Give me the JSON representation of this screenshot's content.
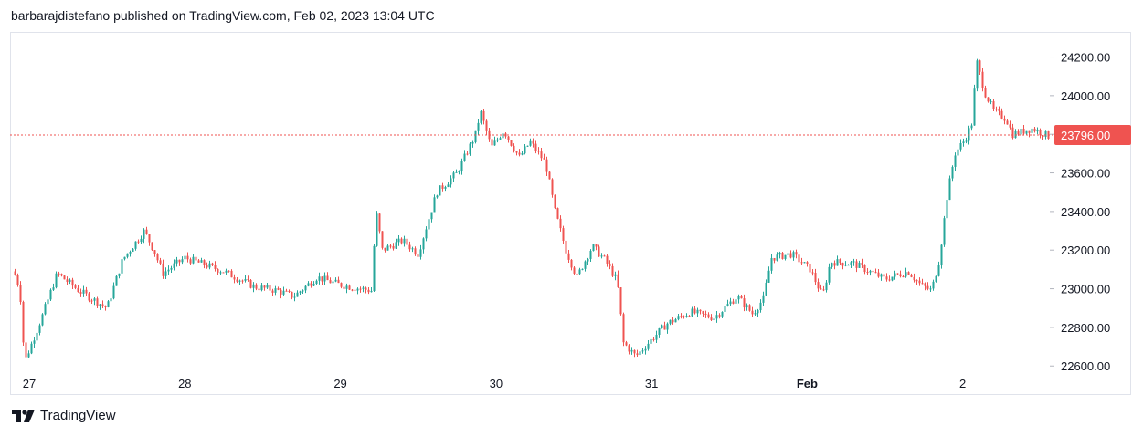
{
  "header": {
    "published_line": "barbarajdistefano published on TradingView.com, Feb 02, 2023 13:04 UTC"
  },
  "footer": {
    "brand": "TradingView"
  },
  "colors": {
    "up": "#26a69a",
    "down": "#ef5350",
    "last_price_line": "#ef5350",
    "last_price_badge": "#ef5350",
    "axis_text": "#131722",
    "border": "#e0e3eb"
  },
  "chart_data": {
    "type": "candlestick",
    "title": "",
    "xlabel": "",
    "ylabel": "",
    "ylim": [
      22450,
      24330
    ],
    "y_ticks": [
      22600,
      22800,
      23000,
      23200,
      23400,
      23600,
      23800,
      24000,
      24200
    ],
    "y_tick_labels": [
      "22600.00",
      "22800.00",
      "23000.00",
      "23200.00",
      "23400.00",
      "23600.00",
      "23800.00",
      "24000.00",
      "24200.00"
    ],
    "x_ticks": [
      {
        "label": "27",
        "t": 0.1
      },
      {
        "label": "28",
        "t": 1.1
      },
      {
        "label": "29",
        "t": 2.1
      },
      {
        "label": "30",
        "t": 3.1
      },
      {
        "label": "31",
        "t": 4.1
      },
      {
        "label": "Feb",
        "t": 5.1
      },
      {
        "label": "2",
        "t": 6.1
      }
    ],
    "last_price": 23796.0,
    "last_price_label": "23796.00",
    "grid": false,
    "legend": "none",
    "path_anchors": [
      {
        "t": 0.0,
        "p": 23090
      },
      {
        "t": 0.04,
        "p": 23000
      },
      {
        "t": 0.07,
        "p": 22620
      },
      {
        "t": 0.18,
        "p": 22850
      },
      {
        "t": 0.28,
        "p": 23080
      },
      {
        "t": 0.42,
        "p": 22990
      },
      {
        "t": 0.6,
        "p": 22900
      },
      {
        "t": 0.7,
        "p": 23150
      },
      {
        "t": 0.84,
        "p": 23300
      },
      {
        "t": 0.9,
        "p": 23200
      },
      {
        "t": 0.96,
        "p": 23080
      },
      {
        "t": 1.1,
        "p": 23160
      },
      {
        "t": 1.35,
        "p": 23090
      },
      {
        "t": 1.55,
        "p": 23010
      },
      {
        "t": 1.7,
        "p": 22990
      },
      {
        "t": 1.8,
        "p": 22960
      },
      {
        "t": 1.95,
        "p": 23060
      },
      {
        "t": 2.1,
        "p": 23020
      },
      {
        "t": 2.3,
        "p": 22990
      },
      {
        "t": 2.33,
        "p": 23400
      },
      {
        "t": 2.37,
        "p": 23200
      },
      {
        "t": 2.5,
        "p": 23250
      },
      {
        "t": 2.6,
        "p": 23180
      },
      {
        "t": 2.72,
        "p": 23500
      },
      {
        "t": 2.85,
        "p": 23600
      },
      {
        "t": 2.97,
        "p": 23800
      },
      {
        "t": 3.0,
        "p": 23920
      },
      {
        "t": 3.07,
        "p": 23730
      },
      {
        "t": 3.15,
        "p": 23820
      },
      {
        "t": 3.25,
        "p": 23680
      },
      {
        "t": 3.32,
        "p": 23760
      },
      {
        "t": 3.42,
        "p": 23650
      },
      {
        "t": 3.48,
        "p": 23400
      },
      {
        "t": 3.55,
        "p": 23200
      },
      {
        "t": 3.62,
        "p": 23060
      },
      {
        "t": 3.72,
        "p": 23220
      },
      {
        "t": 3.8,
        "p": 23150
      },
      {
        "t": 3.88,
        "p": 23040
      },
      {
        "t": 3.92,
        "p": 22720
      },
      {
        "t": 4.0,
        "p": 22650
      },
      {
        "t": 4.08,
        "p": 22720
      },
      {
        "t": 4.2,
        "p": 22820
      },
      {
        "t": 4.35,
        "p": 22880
      },
      {
        "t": 4.5,
        "p": 22850
      },
      {
        "t": 4.65,
        "p": 22960
      },
      {
        "t": 4.75,
        "p": 22870
      },
      {
        "t": 4.82,
        "p": 22950
      },
      {
        "t": 4.87,
        "p": 23160
      },
      {
        "t": 5.0,
        "p": 23180
      },
      {
        "t": 5.12,
        "p": 23100
      },
      {
        "t": 5.2,
        "p": 22960
      },
      {
        "t": 5.25,
        "p": 23140
      },
      {
        "t": 5.4,
        "p": 23130
      },
      {
        "t": 5.6,
        "p": 23050
      },
      {
        "t": 5.75,
        "p": 23090
      },
      {
        "t": 5.83,
        "p": 23020
      },
      {
        "t": 5.9,
        "p": 22990
      },
      {
        "t": 5.95,
        "p": 23150
      },
      {
        "t": 6.0,
        "p": 23480
      },
      {
        "t": 6.05,
        "p": 23700
      },
      {
        "t": 6.12,
        "p": 23780
      },
      {
        "t": 6.16,
        "p": 23860
      },
      {
        "t": 6.19,
        "p": 24180
      },
      {
        "t": 6.24,
        "p": 24020
      },
      {
        "t": 6.3,
        "p": 23920
      },
      {
        "t": 6.38,
        "p": 23880
      },
      {
        "t": 6.42,
        "p": 23800
      },
      {
        "t": 6.55,
        "p": 23830
      },
      {
        "t": 6.65,
        "p": 23790
      }
    ],
    "candle_count": 378,
    "t_range": [
      0.0,
      6.66
    ]
  }
}
